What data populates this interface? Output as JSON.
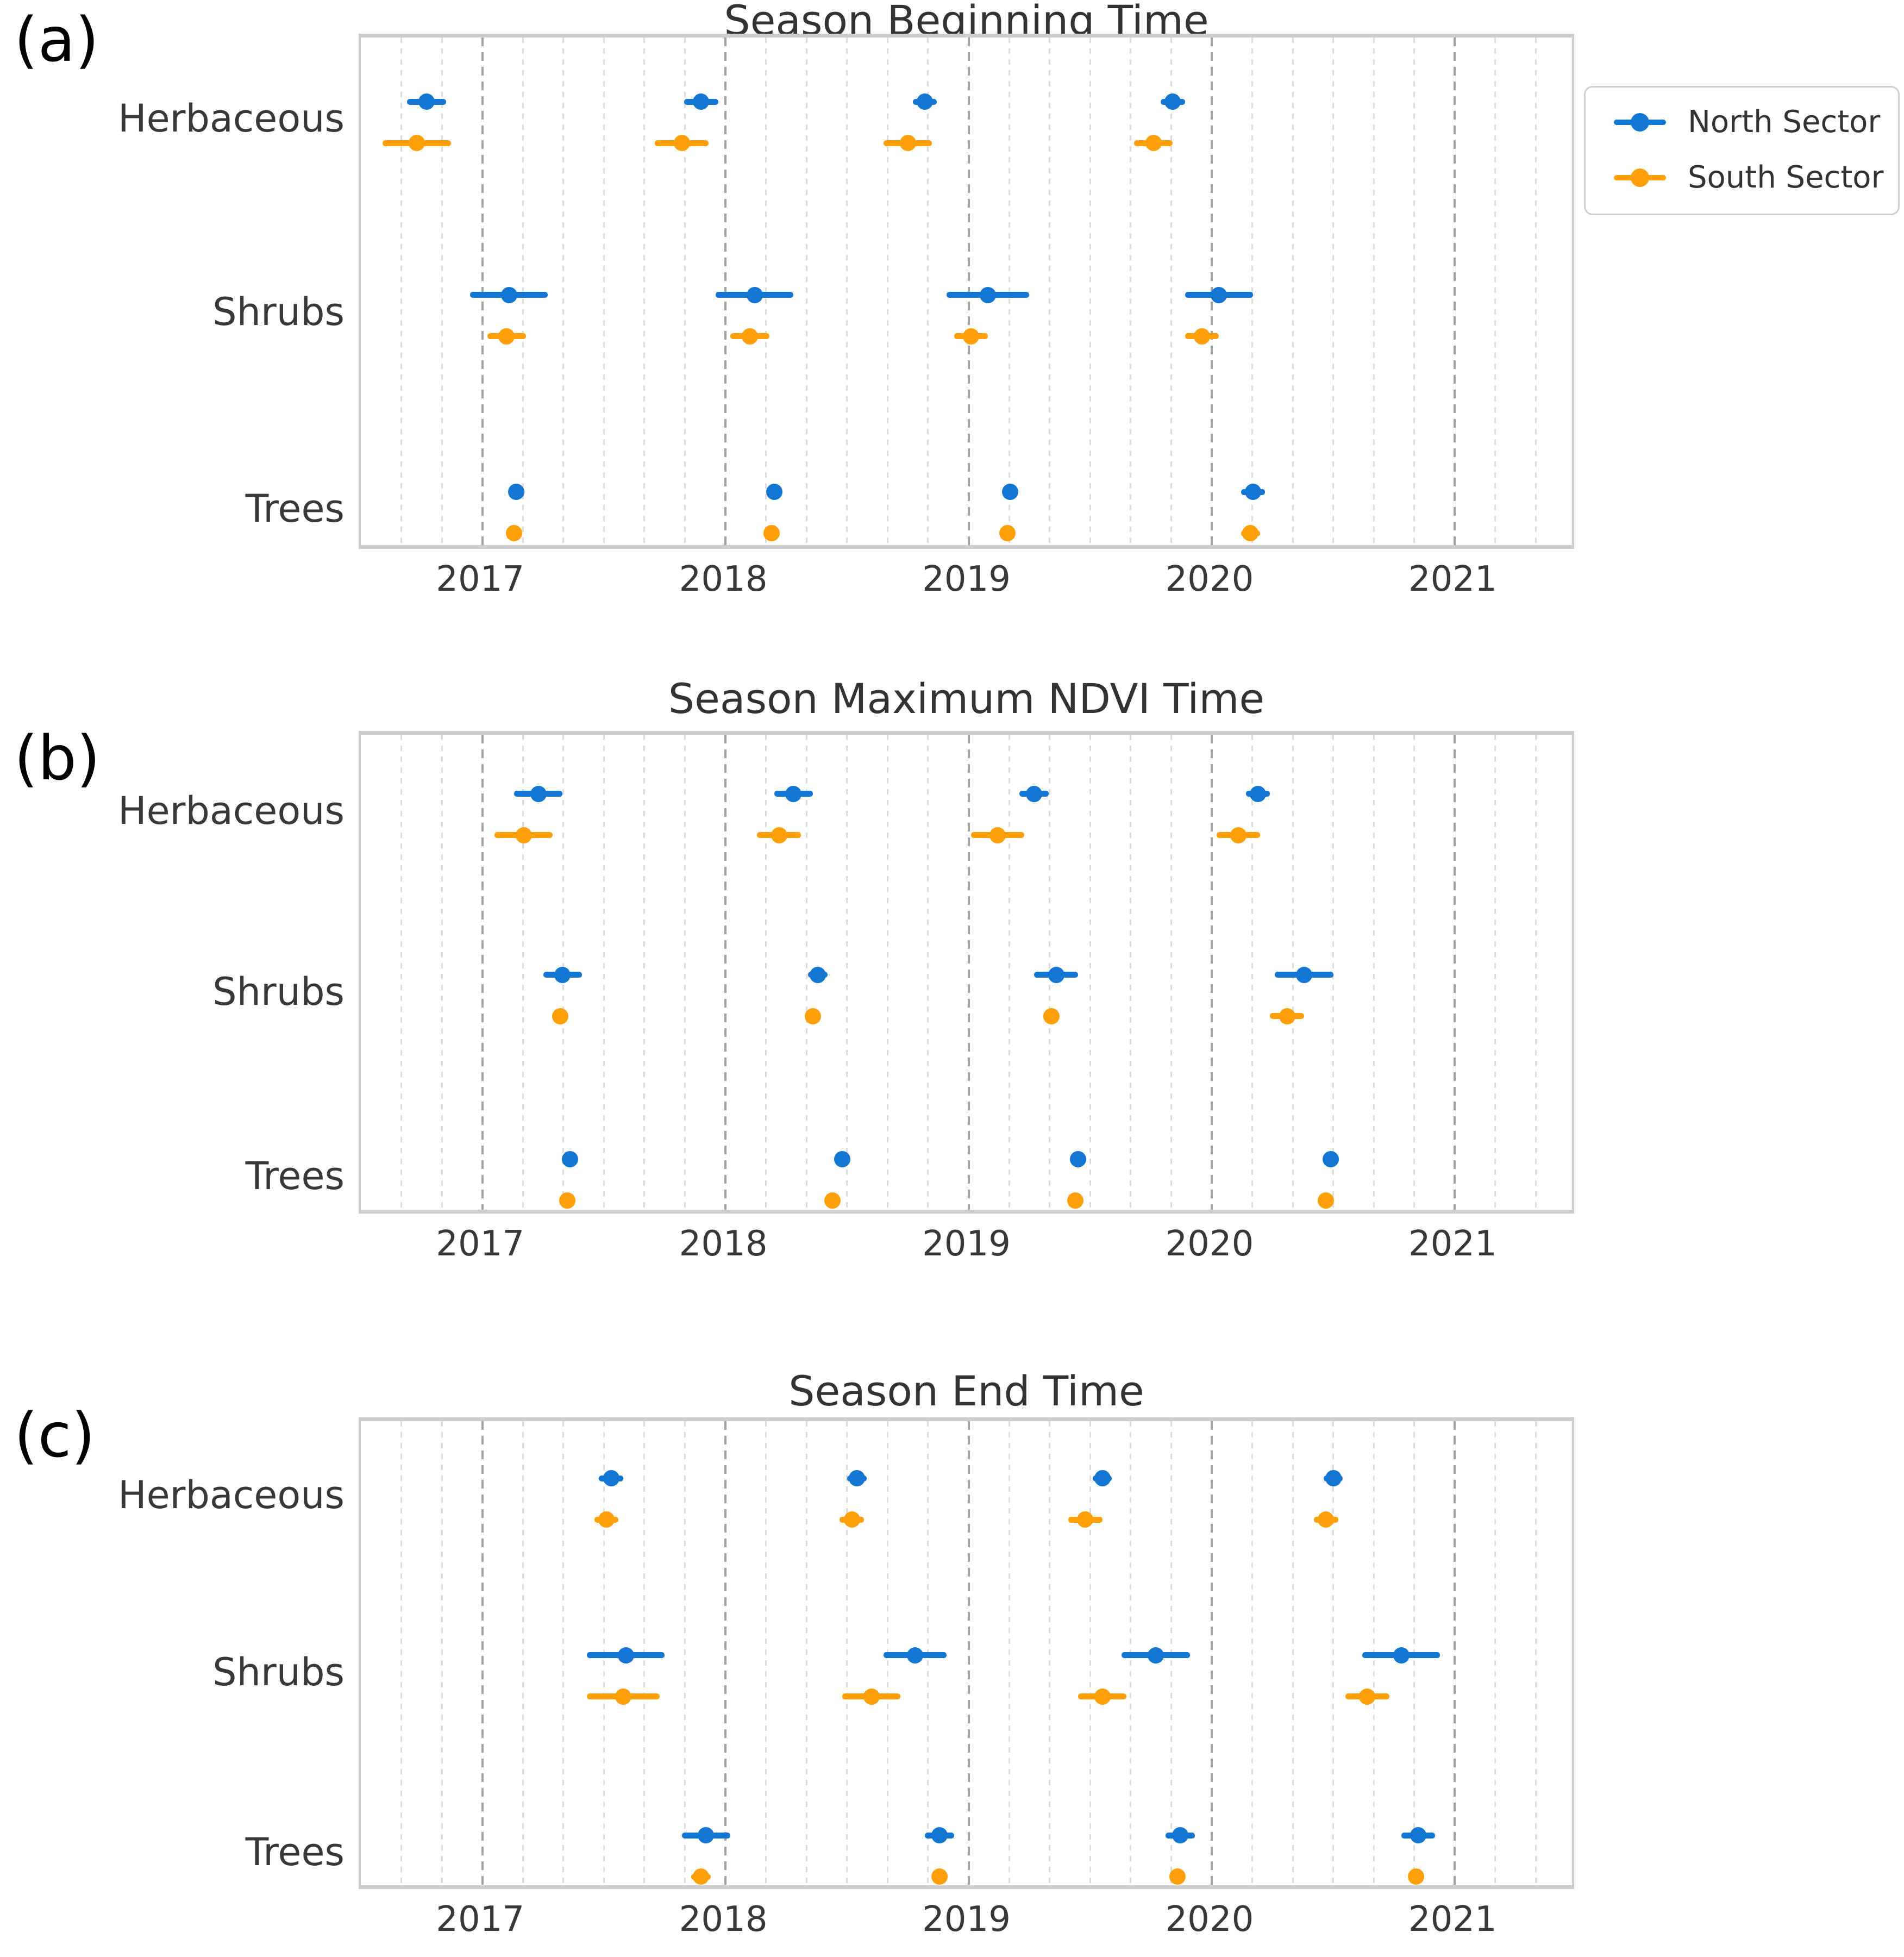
{
  "colors": {
    "north": "#1276d2",
    "south": "#ffa00a",
    "grid_major": "#a3a3a3",
    "grid_minor": "#dcdcdc",
    "spine": "#cdcdcd",
    "text": "#383838"
  },
  "legend": {
    "position": "outside-top-right",
    "entries": [
      "North Sector",
      "South Sector"
    ]
  },
  "chart_data": [
    {
      "type": "scatter",
      "panel_label": "(a)",
      "title": "Season Beginning Time",
      "categories": [
        "Herbaceous",
        "Shrubs",
        "Trees"
      ],
      "x_ticks": [
        "2017",
        "2018",
        "2019",
        "2020",
        "2021"
      ],
      "xlim": [
        2016.5,
        2021.5
      ],
      "x_unit": "decimal_year",
      "grid": {
        "major": "yearly-dashed",
        "minor": "2-month-dashed"
      },
      "legend_visible": true,
      "series": [
        {
          "name": "North Sector",
          "color": "#1276d2",
          "data": {
            "Herbaceous": [
              {
                "x": 2016.77,
                "xerr": 0.08
              },
              {
                "x": 2017.9,
                "xerr": 0.07
              },
              {
                "x": 2018.82,
                "xerr": 0.05
              },
              {
                "x": 2019.84,
                "xerr": 0.05
              }
            ],
            "Shrubs": [
              {
                "x": 2017.11,
                "xerr": 0.16
              },
              {
                "x": 2018.12,
                "xerr": 0.16
              },
              {
                "x": 2019.08,
                "xerr": 0.17
              },
              {
                "x": 2020.03,
                "xerr": 0.14
              }
            ],
            "Trees": [
              {
                "x": 2017.14,
                "xerr": 0.02
              },
              {
                "x": 2018.2,
                "xerr": 0.02
              },
              {
                "x": 2019.17,
                "xerr": 0.03
              },
              {
                "x": 2020.17,
                "xerr": 0.05
              }
            ]
          }
        },
        {
          "name": "South Sector",
          "color": "#ffa00a",
          "data": {
            "Herbaceous": [
              {
                "x": 2016.73,
                "xerr": 0.14
              },
              {
                "x": 2017.82,
                "xerr": 0.11
              },
              {
                "x": 2018.75,
                "xerr": 0.1
              },
              {
                "x": 2019.76,
                "xerr": 0.08
              }
            ],
            "Shrubs": [
              {
                "x": 2017.1,
                "xerr": 0.08
              },
              {
                "x": 2018.1,
                "xerr": 0.08
              },
              {
                "x": 2019.01,
                "xerr": 0.07
              },
              {
                "x": 2019.96,
                "xerr": 0.07
              }
            ],
            "Trees": [
              {
                "x": 2017.13,
                "xerr": 0.02
              },
              {
                "x": 2018.19,
                "xerr": 0.02
              },
              {
                "x": 2019.16,
                "xerr": 0.02
              },
              {
                "x": 2020.16,
                "xerr": 0.04
              }
            ]
          }
        }
      ]
    },
    {
      "type": "scatter",
      "panel_label": "(b)",
      "title": "Season Maximum NDVI Time",
      "categories": [
        "Herbaceous",
        "Shrubs",
        "Trees"
      ],
      "x_ticks": [
        "2017",
        "2018",
        "2019",
        "2020",
        "2021"
      ],
      "xlim": [
        2016.5,
        2021.5
      ],
      "x_unit": "decimal_year",
      "grid": {
        "major": "yearly-dashed",
        "minor": "2-month-dashed"
      },
      "legend_visible": false,
      "series": [
        {
          "name": "North Sector",
          "color": "#1276d2",
          "data": {
            "Herbaceous": [
              {
                "x": 2017.23,
                "xerr": 0.1
              },
              {
                "x": 2018.28,
                "xerr": 0.08
              },
              {
                "x": 2019.27,
                "xerr": 0.06
              },
              {
                "x": 2020.19,
                "xerr": 0.05
              }
            ],
            "Shrubs": [
              {
                "x": 2017.33,
                "xerr": 0.08
              },
              {
                "x": 2018.38,
                "xerr": 0.04
              },
              {
                "x": 2019.36,
                "xerr": 0.09
              },
              {
                "x": 2020.38,
                "xerr": 0.12
              }
            ],
            "Trees": [
              {
                "x": 2017.36,
                "xerr": 0.015
              },
              {
                "x": 2018.48,
                "xerr": 0.015
              },
              {
                "x": 2019.45,
                "xerr": 0.015
              },
              {
                "x": 2020.49,
                "xerr": 0.015
              }
            ]
          }
        },
        {
          "name": "South Sector",
          "color": "#ffa00a",
          "data": {
            "Herbaceous": [
              {
                "x": 2017.17,
                "xerr": 0.12
              },
              {
                "x": 2018.22,
                "xerr": 0.09
              },
              {
                "x": 2019.12,
                "xerr": 0.11
              },
              {
                "x": 2020.11,
                "xerr": 0.09
              }
            ],
            "Shrubs": [
              {
                "x": 2017.32,
                "xerr": 0.03
              },
              {
                "x": 2018.36,
                "xerr": 0.03
              },
              {
                "x": 2019.34,
                "xerr": 0.03
              },
              {
                "x": 2020.31,
                "xerr": 0.07
              }
            ],
            "Trees": [
              {
                "x": 2017.35,
                "xerr": 0.015
              },
              {
                "x": 2018.44,
                "xerr": 0.015
              },
              {
                "x": 2019.44,
                "xerr": 0.015
              },
              {
                "x": 2020.47,
                "xerr": 0.015
              }
            ]
          }
        }
      ]
    },
    {
      "type": "scatter",
      "panel_label": "(c)",
      "title": "Season End Time",
      "categories": [
        "Herbaceous",
        "Shrubs",
        "Trees"
      ],
      "x_ticks": [
        "2017",
        "2018",
        "2019",
        "2020",
        "2021"
      ],
      "xlim": [
        2016.5,
        2021.5
      ],
      "x_unit": "decimal_year",
      "grid": {
        "major": "yearly-dashed",
        "minor": "2-month-dashed"
      },
      "legend_visible": false,
      "series": [
        {
          "name": "North Sector",
          "color": "#1276d2",
          "data": {
            "Herbaceous": [
              {
                "x": 2017.53,
                "xerr": 0.05
              },
              {
                "x": 2018.54,
                "xerr": 0.04
              },
              {
                "x": 2019.55,
                "xerr": 0.04
              },
              {
                "x": 2020.5,
                "xerr": 0.04
              }
            ],
            "Shrubs": [
              {
                "x": 2017.59,
                "xerr": 0.16
              },
              {
                "x": 2018.78,
                "xerr": 0.13
              },
              {
                "x": 2019.77,
                "xerr": 0.14
              },
              {
                "x": 2020.78,
                "xerr": 0.16
              }
            ],
            "Trees": [
              {
                "x": 2017.92,
                "xerr": 0.1
              },
              {
                "x": 2018.88,
                "xerr": 0.06
              },
              {
                "x": 2019.87,
                "xerr": 0.06
              },
              {
                "x": 2020.85,
                "xerr": 0.07
              }
            ]
          }
        },
        {
          "name": "South Sector",
          "color": "#ffa00a",
          "data": {
            "Herbaceous": [
              {
                "x": 2017.51,
                "xerr": 0.05
              },
              {
                "x": 2018.52,
                "xerr": 0.05
              },
              {
                "x": 2019.48,
                "xerr": 0.07
              },
              {
                "x": 2020.47,
                "xerr": 0.05
              }
            ],
            "Shrubs": [
              {
                "x": 2017.58,
                "xerr": 0.15
              },
              {
                "x": 2018.6,
                "xerr": 0.12
              },
              {
                "x": 2019.55,
                "xerr": 0.1
              },
              {
                "x": 2020.64,
                "xerr": 0.09
              }
            ],
            "Trees": [
              {
                "x": 2017.9,
                "xerr": 0.04
              },
              {
                "x": 2018.88,
                "xerr": 0.02
              },
              {
                "x": 2019.86,
                "xerr": 0.02
              },
              {
                "x": 2020.84,
                "xerr": 0.02
              }
            ]
          }
        }
      ]
    }
  ]
}
